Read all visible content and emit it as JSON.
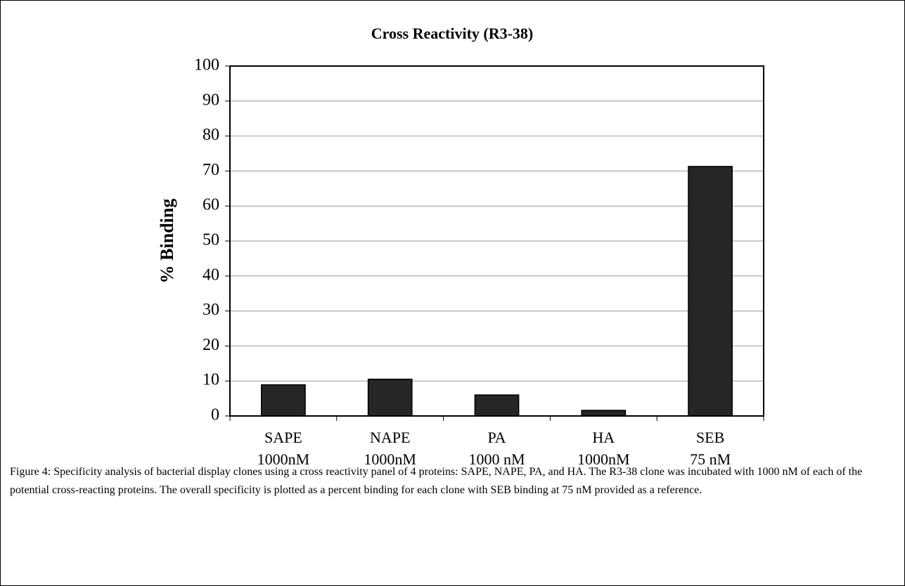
{
  "chart_data": {
    "type": "bar",
    "title": "Cross Reactivity (R3-38)",
    "y_label": "% Binding",
    "categories": [
      [
        "SAPE",
        "1000nM"
      ],
      [
        "NAPE",
        "1000nM"
      ],
      [
        "PA",
        "1000 nM"
      ],
      [
        "HA",
        "1000nM"
      ],
      [
        "SEB",
        "75 nM"
      ]
    ],
    "values": [
      8.9,
      10.5,
      6.0,
      1.6,
      71.3
    ],
    "color": "#262626",
    "ylim": [
      0,
      100
    ],
    "yticks": [
      0,
      10,
      20,
      30,
      40,
      50,
      60,
      70,
      80,
      90,
      100
    ],
    "grid": true
  },
  "caption": "Figure 4:   Specificity analysis of bacterial display clones using a cross reactivity panel of 4 proteins: SAPE, NAPE, PA, and HA.  The R3-38 clone was incubated with 1000 nM of each of the potential cross-reacting proteins.  The overall specificity is plotted as a percent binding for each clone with SEB binding at 75 nM provided as a reference."
}
